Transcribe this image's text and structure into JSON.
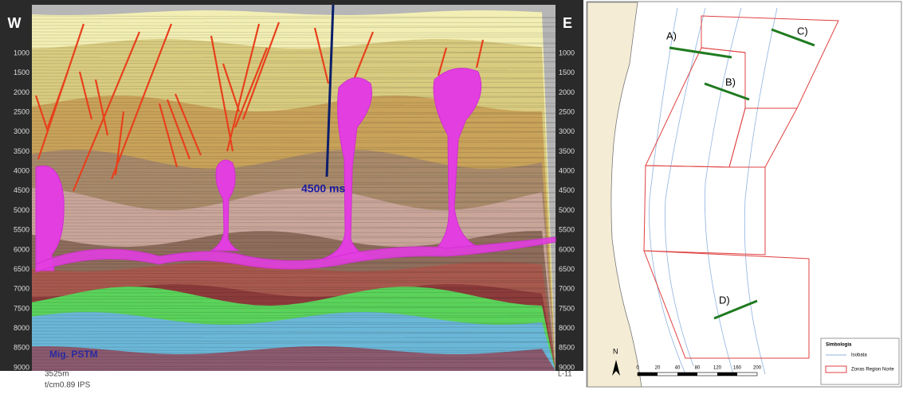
{
  "section": {
    "west": "W",
    "east": "E",
    "well_label": "4500 ms",
    "migration": "Mig. PSTM",
    "scale": "3525m",
    "ips": "t/cm0.89 IPS",
    "line_end": "L-11",
    "depth_labels": [
      1000,
      1500,
      2000,
      2500,
      3000,
      3500,
      4000,
      4500,
      5000,
      5500,
      6000,
      6500,
      7000,
      7500,
      8000,
      8500,
      9000
    ]
  },
  "map": {
    "lines": [
      "A)",
      "B)",
      "C)",
      "D)"
    ],
    "north": "N",
    "scale_labels": [
      "0",
      "20",
      "40",
      "80",
      "120",
      "160",
      "200"
    ],
    "legend": {
      "title": "Simbologia",
      "items": [
        "Isobata",
        "Zonas Region Norte"
      ]
    }
  }
}
